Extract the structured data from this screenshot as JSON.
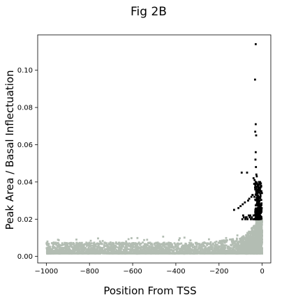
{
  "chart_data": {
    "type": "scatter",
    "title": "Fig 2B",
    "xlabel": "Position From TSS",
    "ylabel": "Peak Area / Basal Inflectuation",
    "xlim": [
      -1040,
      40
    ],
    "ylim": [
      -0.0035,
      0.119
    ],
    "x_ticks": [
      -1000,
      -800,
      -600,
      -400,
      -200,
      0
    ],
    "x_tick_labels": [
      "−1000",
      "−800",
      "−600",
      "−400",
      "−200",
      "0"
    ],
    "y_ticks": [
      0.0,
      0.02,
      0.04,
      0.06,
      0.08,
      0.1
    ],
    "y_tick_labels": [
      "0.00",
      "0.02",
      "0.04",
      "0.06",
      "0.08",
      "0.10"
    ],
    "grid": false,
    "legend": "none",
    "series": [
      {
        "group": "background",
        "color": "#b3bdb3",
        "x_range": [
          -1000,
          0
        ],
        "approx_y_range": [
          0.001,
          0.02
        ],
        "note": "dense cloud of several thousand points"
      },
      {
        "group": "highlighted",
        "color": "#000000",
        "x": [
          -30,
          -33,
          -30,
          -32,
          -28,
          -30,
          -31,
          -29,
          -95,
          -70,
          -27,
          -25,
          -15,
          -10,
          -5,
          -8,
          -12,
          -18,
          -22,
          -45,
          -50,
          -60,
          -65,
          -80,
          -90,
          -100,
          -110,
          -130,
          -3,
          -6,
          -9,
          -14,
          -20,
          -24,
          -28,
          -35,
          -40,
          -55,
          -75,
          -85,
          -4,
          -7,
          -11,
          -16,
          -26,
          -34,
          -38,
          -42,
          -48,
          -52,
          -58,
          -62,
          -68,
          -72,
          -78,
          -88,
          -92,
          -2,
          -13,
          -17,
          -19,
          -21,
          -23,
          -36,
          -44,
          -1,
          -5,
          -10,
          -15,
          -20,
          -25,
          -30,
          -35,
          -40,
          -3,
          -8,
          -12,
          -18,
          -22,
          -27,
          -32,
          -6,
          -9,
          -14,
          -16,
          -24,
          -28,
          -33,
          -37
        ],
        "y": [
          0.114,
          0.095,
          0.071,
          0.067,
          0.065,
          0.056,
          0.052,
          0.048,
          0.045,
          0.045,
          0.044,
          0.043,
          0.04,
          0.039,
          0.038,
          0.037,
          0.036,
          0.035,
          0.034,
          0.033,
          0.032,
          0.031,
          0.03,
          0.029,
          0.028,
          0.027,
          0.026,
          0.025,
          0.025,
          0.024,
          0.024,
          0.023,
          0.023,
          0.023,
          0.022,
          0.022,
          0.022,
          0.022,
          0.021,
          0.021,
          0.021,
          0.021,
          0.021,
          0.02,
          0.02,
          0.02,
          0.02,
          0.02,
          0.021,
          0.02,
          0.021,
          0.022,
          0.02,
          0.021,
          0.02,
          0.022,
          0.02,
          0.026,
          0.027,
          0.028,
          0.029,
          0.03,
          0.031,
          0.032,
          0.033,
          0.034,
          0.035,
          0.036,
          0.037,
          0.038,
          0.039,
          0.04,
          0.041,
          0.042,
          0.024,
          0.026,
          0.028,
          0.03,
          0.032,
          0.034,
          0.036,
          0.025,
          0.027,
          0.029,
          0.031,
          0.033,
          0.035,
          0.037,
          0.039
        ]
      }
    ]
  }
}
